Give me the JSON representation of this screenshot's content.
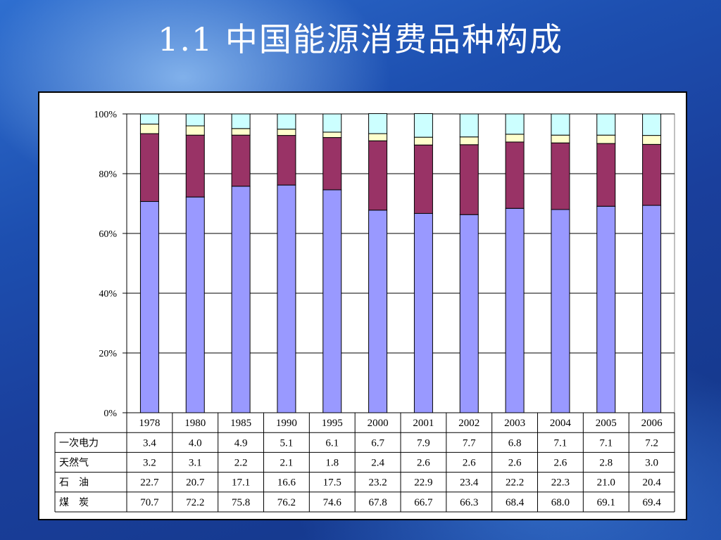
{
  "slide": {
    "title": "1.1  中国能源消费品种构成"
  },
  "chart_data": {
    "type": "bar",
    "stacked": true,
    "percent": true,
    "categories": [
      "1978",
      "1980",
      "1985",
      "1990",
      "1995",
      "2000",
      "2001",
      "2002",
      "2003",
      "2004",
      "2005",
      "2006"
    ],
    "series": [
      {
        "name": "煤　炭",
        "color": "#9999ff",
        "values": [
          70.7,
          72.2,
          75.8,
          76.2,
          74.6,
          67.8,
          66.7,
          66.3,
          68.4,
          68.0,
          69.1,
          69.4
        ]
      },
      {
        "name": "石　油",
        "color": "#993366",
        "values": [
          22.7,
          20.7,
          17.1,
          16.6,
          17.5,
          23.2,
          22.9,
          23.4,
          22.2,
          22.3,
          21.0,
          20.4
        ]
      },
      {
        "name": "天然气",
        "color": "#ffffcc",
        "values": [
          3.2,
          3.1,
          2.2,
          2.1,
          1.8,
          2.4,
          2.6,
          2.6,
          2.6,
          2.6,
          2.8,
          3.0
        ]
      },
      {
        "name": "一次电力",
        "color": "#ccffff",
        "values": [
          3.4,
          4.0,
          4.9,
          5.1,
          6.1,
          6.7,
          7.9,
          7.7,
          6.8,
          7.1,
          7.1,
          7.2
        ]
      }
    ],
    "y_ticks": [
      "0%",
      "20%",
      "40%",
      "60%",
      "80%",
      "100%"
    ],
    "ylim": [
      0,
      100
    ],
    "grid": true,
    "data_table": true,
    "table_row_order": [
      "一次电力",
      "天然气",
      "石　油",
      "煤　炭"
    ]
  }
}
